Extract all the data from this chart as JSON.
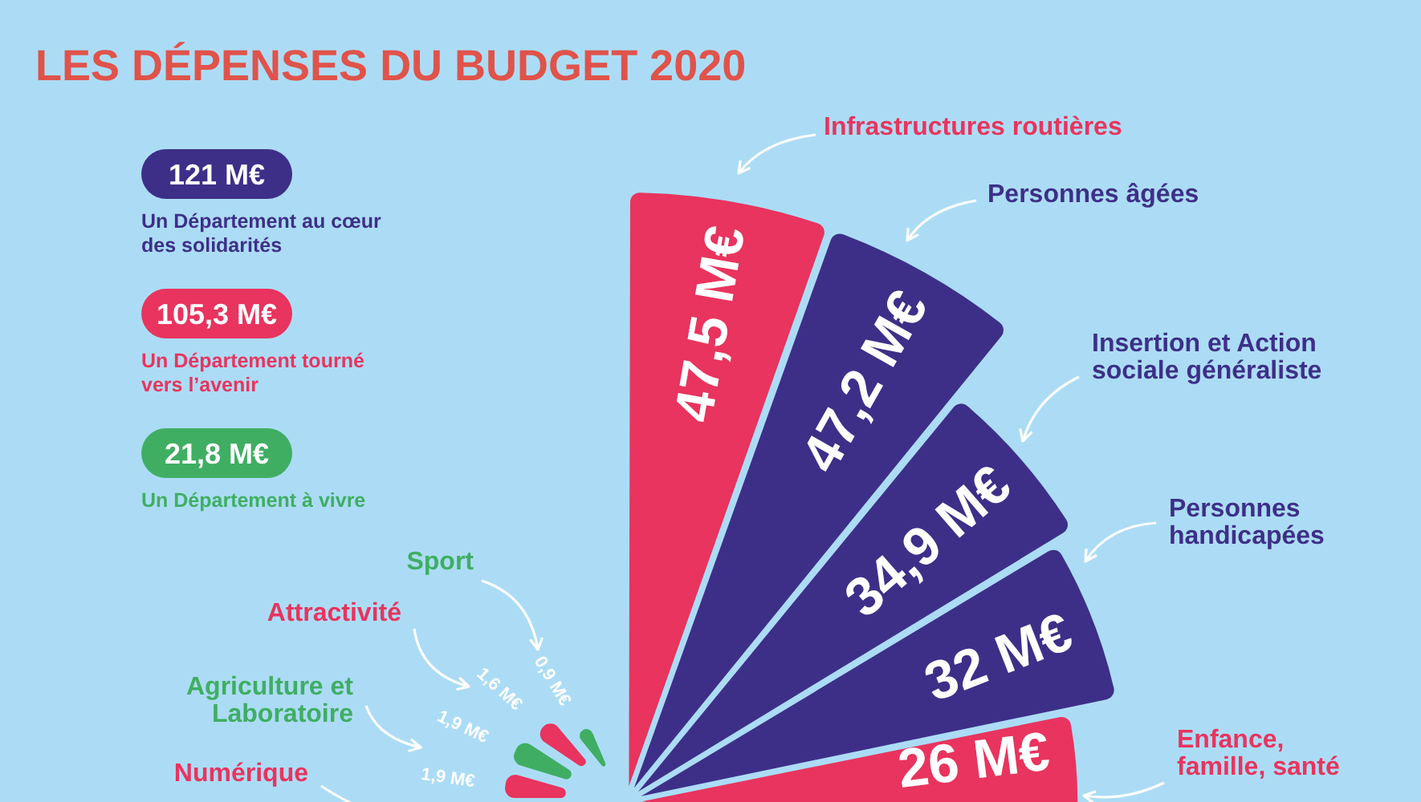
{
  "chart_data": {
    "type": "other",
    "title": "LES DÉPENSES DU BUDGET 2020",
    "categories": [
      "Infrastructures routières",
      "Personnes âgées",
      "Insertion et Action sociale généraliste",
      "Personnes handicapées",
      "Enfance, famille, santé",
      "Sport",
      "Attractivité",
      "Agriculture et Laboratoire",
      "Numérique"
    ],
    "series": [
      {
        "name": "Un Département au cœur des solidarités",
        "color": "#3d2f88",
        "values": [
          null,
          47.2,
          34.9,
          32,
          null,
          null,
          null,
          null,
          null
        ],
        "value_labels": [
          null,
          "47,2 M€",
          "34,9 M€",
          "32 M€",
          null,
          null,
          null,
          null,
          null
        ]
      },
      {
        "name": "Un Département tourné vers l’avenir",
        "color": "#e8345e",
        "values": [
          47.5,
          null,
          null,
          null,
          26,
          null,
          1.6,
          null,
          1.9
        ],
        "value_labels": [
          "47,5 M€",
          null,
          null,
          null,
          "26 M€",
          null,
          "1,6 M€",
          null,
          "1,9 M€"
        ]
      },
      {
        "name": "Un Département à vivre",
        "color": "#3fae63",
        "values": [
          null,
          null,
          null,
          null,
          null,
          0.9,
          null,
          1.9,
          null
        ],
        "value_labels": [
          null,
          null,
          null,
          null,
          null,
          "0,9 M€",
          null,
          "1,9 M€",
          null
        ]
      }
    ],
    "annotations": [
      "121 M€",
      "105,3 M€",
      "21,8 M€"
    ],
    "legend": "left"
  }
}
